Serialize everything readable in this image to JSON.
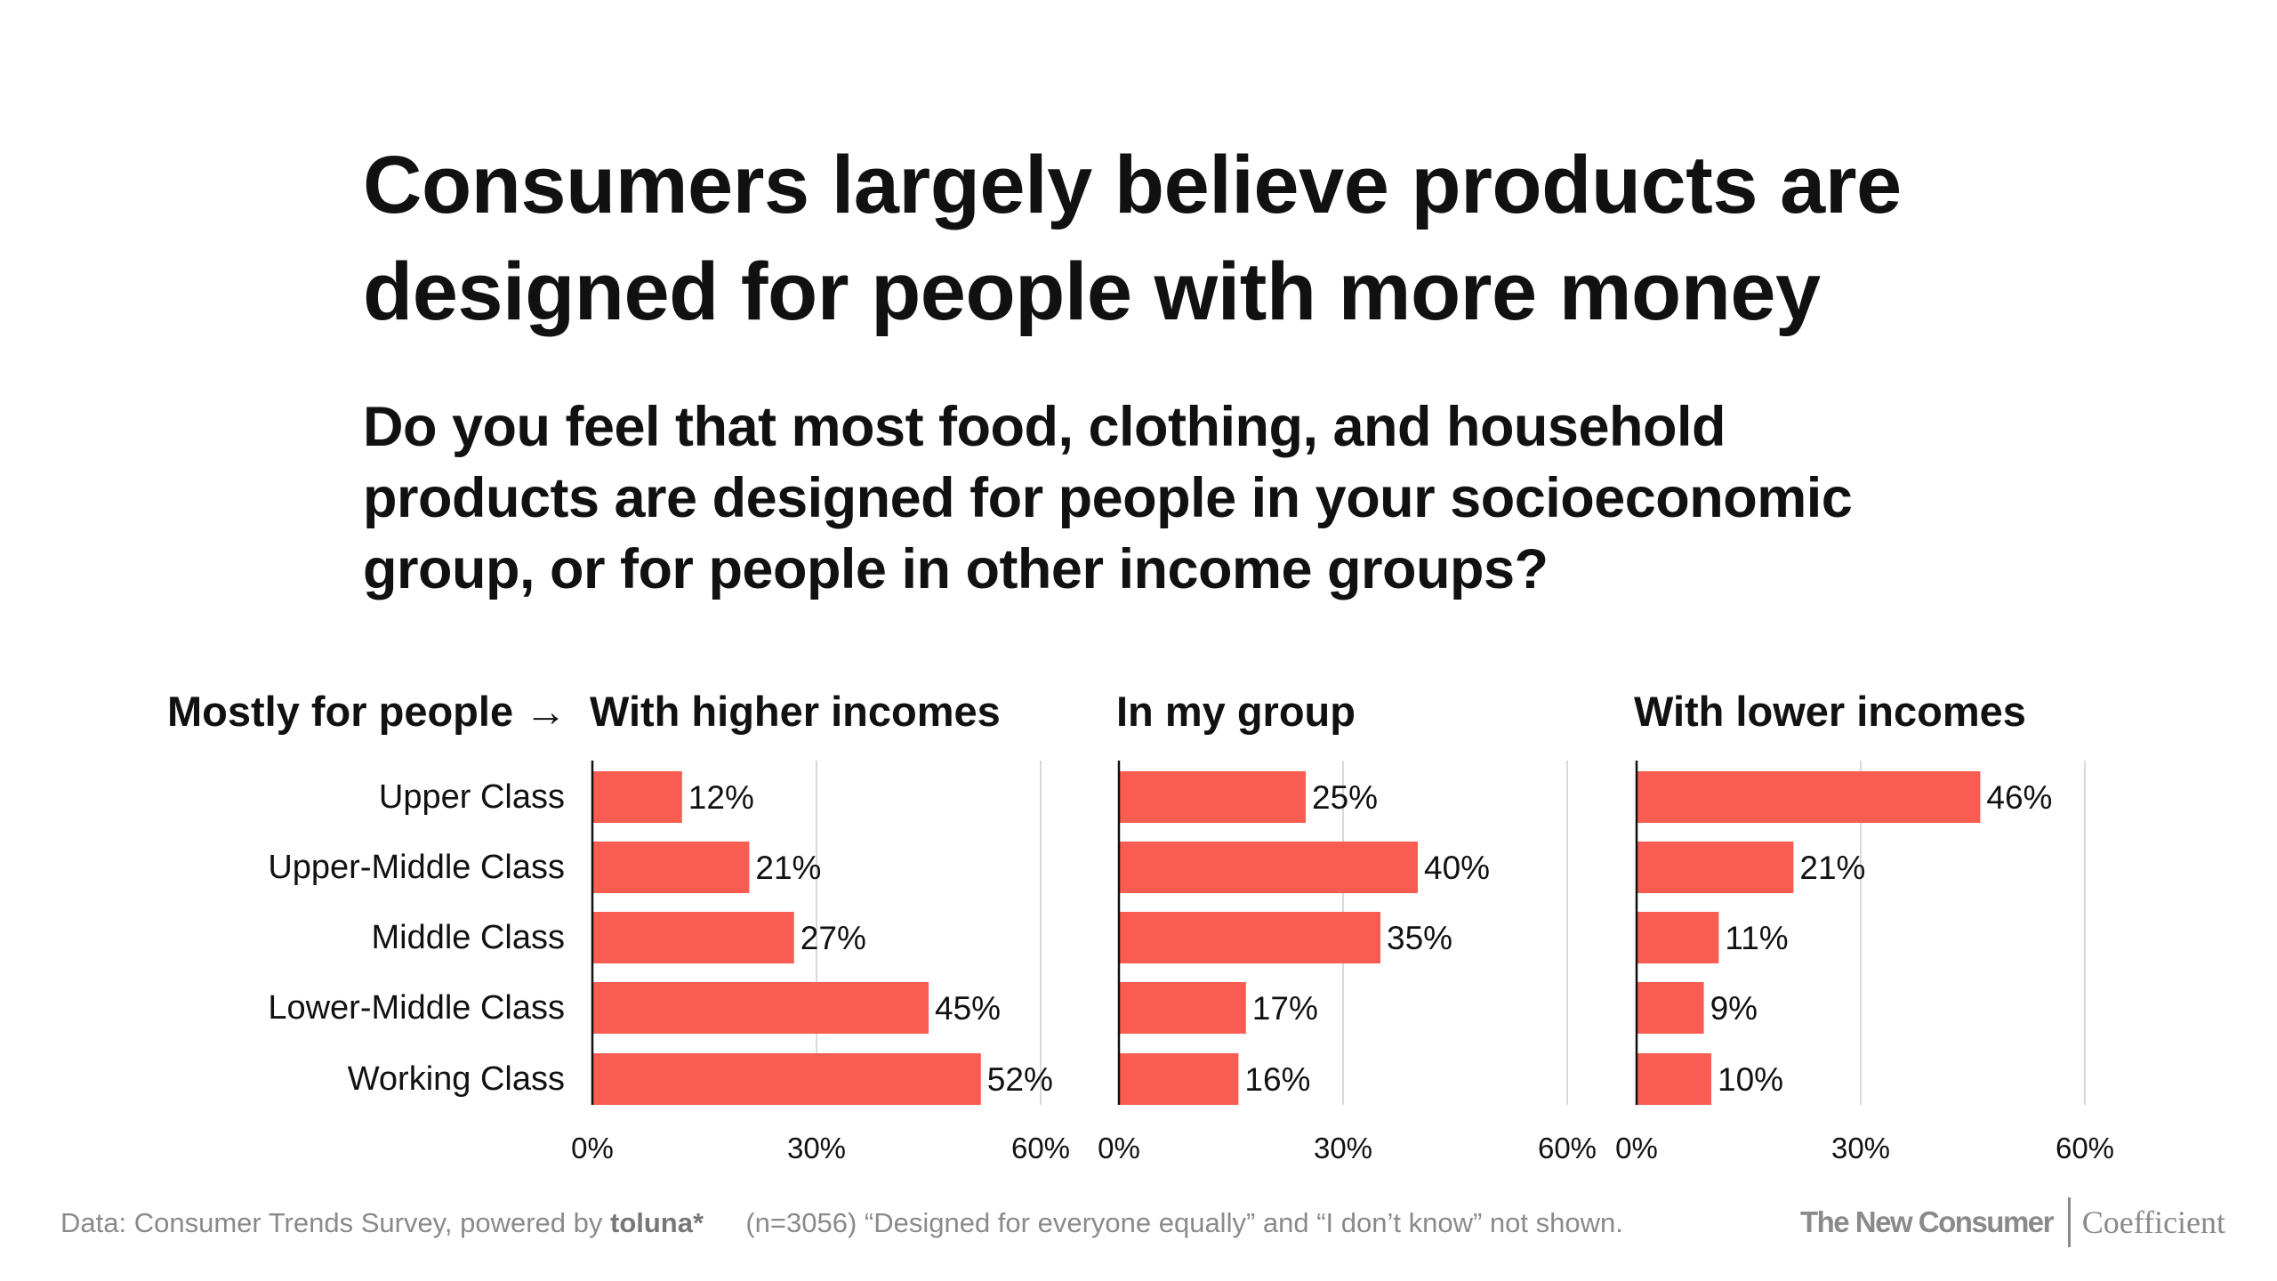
{
  "title": "Consumers largely believe products are designed for people with more money",
  "subtitle": "Do you feel that most food, clothing, and household products are designed for people in your socioeconomic group, or for people in other income groups?",
  "row_header_label": "Mostly for people →",
  "footer": {
    "source_prefix": "Data: Consumer Trends Survey, powered by",
    "source_brand": "toluna*",
    "note": "(n=3056) “Designed for everyone equally” and “I don’t know” not shown.",
    "brand_left": "The New Consumer",
    "brand_right": "Coefficient"
  },
  "colors": {
    "bar": "#f95c50",
    "grid": "#d9d9d9",
    "axis": "#111111"
  },
  "chart_data": {
    "type": "bar",
    "orientation": "horizontal",
    "categories": [
      "Upper Class",
      "Upper-Middle Class",
      "Middle Class",
      "Lower-Middle Class",
      "Working Class"
    ],
    "panels": [
      {
        "name": "With higher incomes",
        "values": [
          12,
          21,
          27,
          45,
          52
        ],
        "labels": [
          "12%",
          "21%",
          "27%",
          "45%",
          "52%"
        ]
      },
      {
        "name": "In my group",
        "values": [
          25,
          40,
          35,
          17,
          16
        ],
        "labels": [
          "25%",
          "40%",
          "35%",
          "17%",
          "16%"
        ]
      },
      {
        "name": "With lower incomes",
        "values": [
          46,
          21,
          11,
          9,
          10
        ],
        "labels": [
          "46%",
          "21%",
          "11%",
          "9%",
          "10%"
        ]
      }
    ],
    "xlim": [
      0,
      60
    ],
    "xticks": [
      0,
      30,
      60
    ],
    "xtick_labels": [
      "0%",
      "30%",
      "60%"
    ],
    "title": "Consumers largely believe products are designed for people with more money",
    "ylabel": "Mostly for people →",
    "xlabel": "",
    "grid": true
  }
}
